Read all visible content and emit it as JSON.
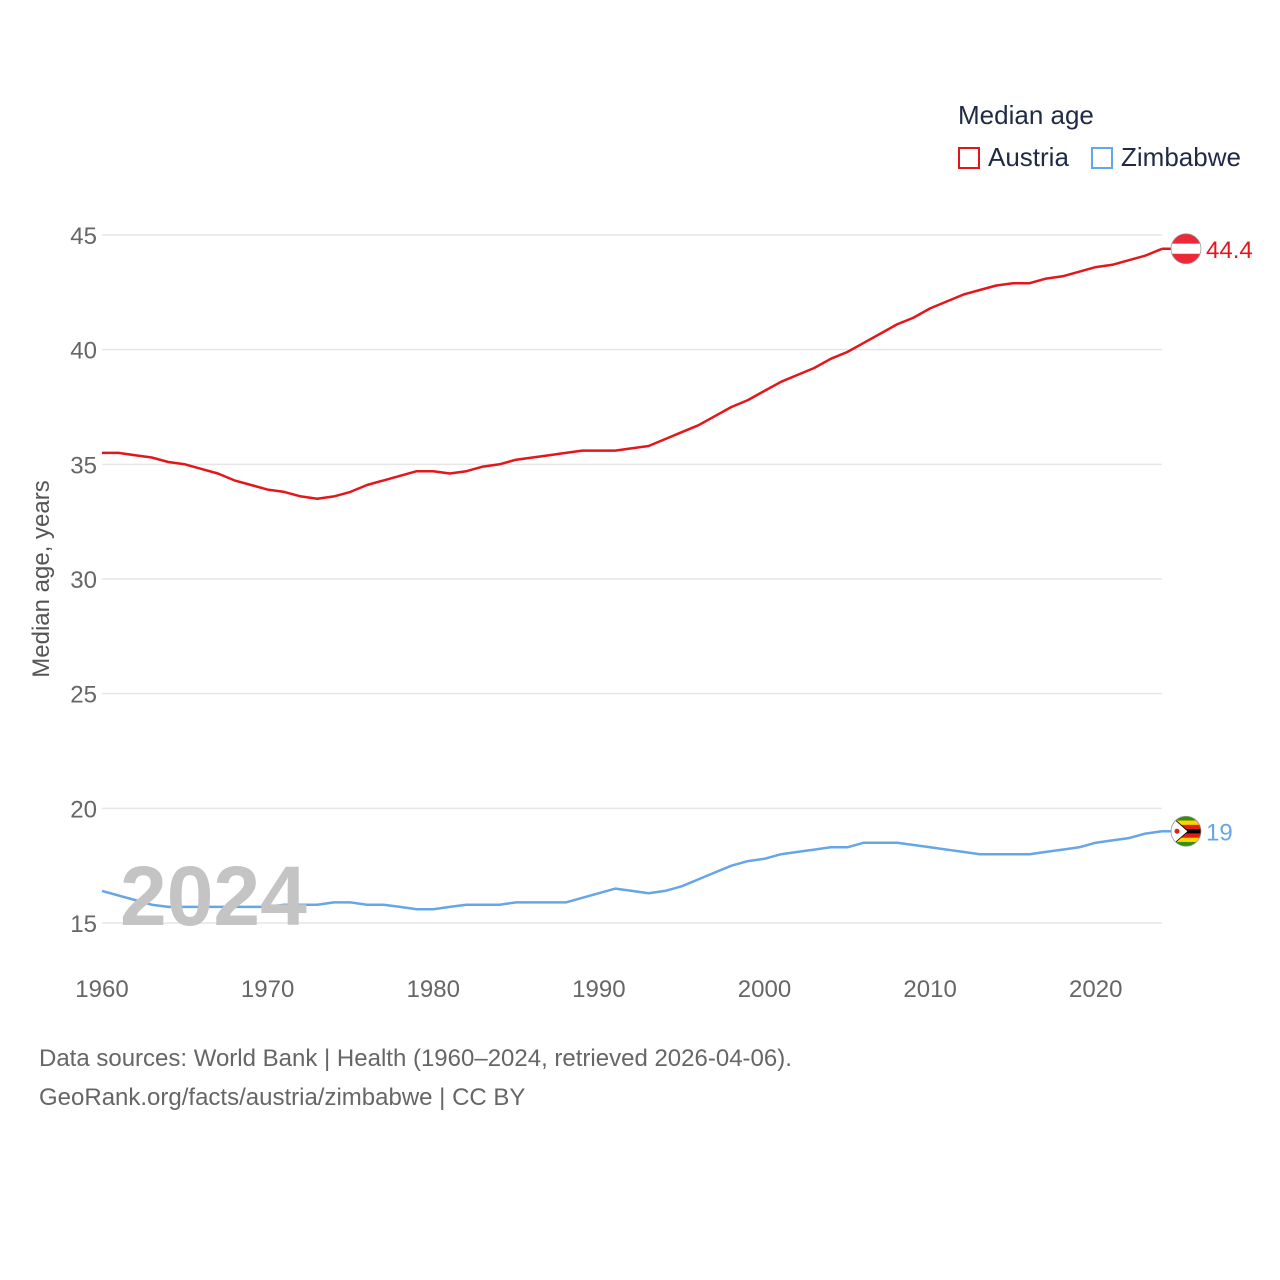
{
  "legend": {
    "title": "Median age",
    "items": [
      {
        "label": "Austria",
        "color": "#e3161c"
      },
      {
        "label": "Zimbabwe",
        "color": "#66a6e6"
      }
    ]
  },
  "watermark_year": "2024",
  "footer": {
    "line1": "Data sources: World Bank | Health (1960–2024, retrieved 2026-04-06).",
    "line2": "GeoRank.org/facts/austria/zimbabwe | CC BY"
  },
  "chart_data": {
    "type": "line",
    "title": "Median age",
    "xlabel": "",
    "ylabel": "Median age, years",
    "xlim": [
      1960,
      2024
    ],
    "ylim": [
      13,
      46
    ],
    "xticks": [
      1960,
      1970,
      1980,
      1990,
      2000,
      2010,
      2020
    ],
    "yticks": [
      15,
      20,
      25,
      30,
      35,
      40,
      45
    ],
    "grid": true,
    "legend_position": "top-right",
    "x": [
      1960,
      1961,
      1962,
      1963,
      1964,
      1965,
      1966,
      1967,
      1968,
      1969,
      1970,
      1971,
      1972,
      1973,
      1974,
      1975,
      1976,
      1977,
      1978,
      1979,
      1980,
      1981,
      1982,
      1983,
      1984,
      1985,
      1986,
      1987,
      1988,
      1989,
      1990,
      1991,
      1992,
      1993,
      1994,
      1995,
      1996,
      1997,
      1998,
      1999,
      2000,
      2001,
      2002,
      2003,
      2004,
      2005,
      2006,
      2007,
      2008,
      2009,
      2010,
      2011,
      2012,
      2013,
      2014,
      2015,
      2016,
      2017,
      2018,
      2019,
      2020,
      2021,
      2022,
      2023,
      2024
    ],
    "series": [
      {
        "name": "Austria",
        "color": "#e3161c",
        "end_label": "44.4",
        "values": [
          35.5,
          35.5,
          35.4,
          35.3,
          35.1,
          35.0,
          34.8,
          34.6,
          34.3,
          34.1,
          33.9,
          33.8,
          33.6,
          33.5,
          33.6,
          33.8,
          34.1,
          34.3,
          34.5,
          34.7,
          34.7,
          34.6,
          34.7,
          34.9,
          35.0,
          35.2,
          35.3,
          35.4,
          35.5,
          35.6,
          35.6,
          35.6,
          35.7,
          35.8,
          36.1,
          36.4,
          36.7,
          37.1,
          37.5,
          37.8,
          38.2,
          38.6,
          38.9,
          39.2,
          39.6,
          39.9,
          40.3,
          40.7,
          41.1,
          41.4,
          41.8,
          42.1,
          42.4,
          42.6,
          42.8,
          42.9,
          42.9,
          43.1,
          43.2,
          43.4,
          43.6,
          43.7,
          43.9,
          44.1,
          44.4
        ]
      },
      {
        "name": "Zimbabwe",
        "color": "#66a6e6",
        "end_label": "19",
        "values": [
          16.4,
          16.2,
          16.0,
          15.8,
          15.7,
          15.7,
          15.7,
          15.7,
          15.7,
          15.7,
          15.7,
          15.8,
          15.8,
          15.8,
          15.9,
          15.9,
          15.8,
          15.8,
          15.7,
          15.6,
          15.6,
          15.7,
          15.8,
          15.8,
          15.8,
          15.9,
          15.9,
          15.9,
          15.9,
          16.1,
          16.3,
          16.5,
          16.4,
          16.3,
          16.4,
          16.6,
          16.9,
          17.2,
          17.5,
          17.7,
          17.8,
          18.0,
          18.1,
          18.2,
          18.3,
          18.3,
          18.5,
          18.5,
          18.5,
          18.4,
          18.3,
          18.2,
          18.1,
          18.0,
          18.0,
          18.0,
          18.0,
          18.1,
          18.2,
          18.3,
          18.5,
          18.6,
          18.7,
          18.9,
          19.0
        ]
      }
    ]
  }
}
